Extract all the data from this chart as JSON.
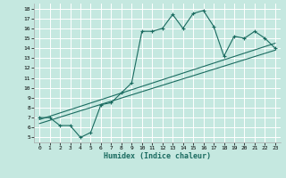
{
  "title": "",
  "xlabel": "Humidex (Indice chaleur)",
  "bg_color": "#c5e8e0",
  "line_color": "#1a6b60",
  "xlim": [
    -0.5,
    23.5
  ],
  "ylim": [
    4.5,
    18.5
  ],
  "xticks": [
    0,
    1,
    2,
    3,
    4,
    5,
    6,
    7,
    8,
    9,
    10,
    11,
    12,
    13,
    14,
    15,
    16,
    17,
    18,
    19,
    20,
    21,
    22,
    23
  ],
  "yticks": [
    5,
    6,
    7,
    8,
    9,
    10,
    11,
    12,
    13,
    14,
    15,
    16,
    17,
    18
  ],
  "main_x": [
    0,
    1,
    2,
    3,
    4,
    5,
    6,
    7,
    8,
    9,
    10,
    11,
    12,
    13,
    14,
    15,
    16,
    17,
    18,
    19,
    20,
    21,
    22,
    23
  ],
  "main_y": [
    7.0,
    7.0,
    6.2,
    6.2,
    5.0,
    5.5,
    8.3,
    8.5,
    9.5,
    10.5,
    15.7,
    15.7,
    16.0,
    17.4,
    16.0,
    17.5,
    17.8,
    16.2,
    13.2,
    15.2,
    15.0,
    15.7,
    15.0,
    14.0
  ],
  "line2_x": [
    0,
    23
  ],
  "line2_y": [
    6.8,
    14.5
  ],
  "line3_x": [
    0,
    23
  ],
  "line3_y": [
    6.4,
    13.8
  ],
  "xlabel_fontsize": 6.0,
  "tick_fontsize": 4.5
}
